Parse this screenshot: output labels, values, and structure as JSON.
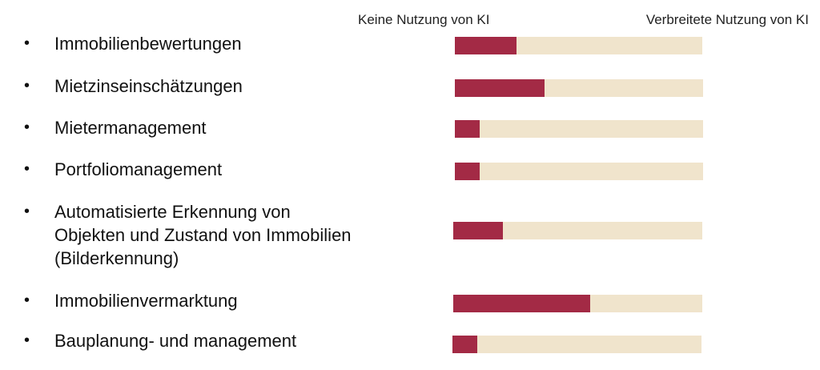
{
  "header": {
    "left_label": "Keine Nutzung von KI",
    "right_label": "Verbreitete Nutzung von KI"
  },
  "colors": {
    "fill": "#a32a45",
    "track": "#f0e4cc"
  },
  "chart_data": {
    "type": "bar",
    "orientation": "horizontal",
    "scale": [
      0,
      1
    ],
    "scale_labels": [
      "Keine Nutzung von KI",
      "Verbreitete Nutzung von KI"
    ],
    "categories": [
      "Immobilienbewertungen",
      "Mietzinseinschätzungen",
      "Mietermanagement",
      "Portfoliomanagement",
      "Automatisierte Erkennung von Objekten und Zustand von Immobilien (Bilderkennung)",
      "Immobilienvermarktung",
      "Bauplanung- und management"
    ],
    "values": [
      0.25,
      0.36,
      0.1,
      0.1,
      0.2,
      0.55,
      0.1
    ]
  },
  "items": [
    {
      "bullet": "•",
      "lines": [
        "Immobilienbewertungen"
      ]
    },
    {
      "bullet": "•",
      "lines": [
        "Mietzinseinschätzungen"
      ]
    },
    {
      "bullet": "•",
      "lines": [
        "Mietermanagement"
      ]
    },
    {
      "bullet": "•",
      "lines": [
        "Portfoliomanagement"
      ]
    },
    {
      "bullet": "•",
      "lines": [
        "Automatisierte Erkennung von",
        "Objekten und Zustand von Immobilien",
        "(Bilderkennung)"
      ]
    },
    {
      "bullet": "•",
      "lines": [
        "Immobilienvermarktung"
      ]
    },
    {
      "bullet": "•",
      "lines": [
        "Bauplanung- und management"
      ]
    }
  ]
}
